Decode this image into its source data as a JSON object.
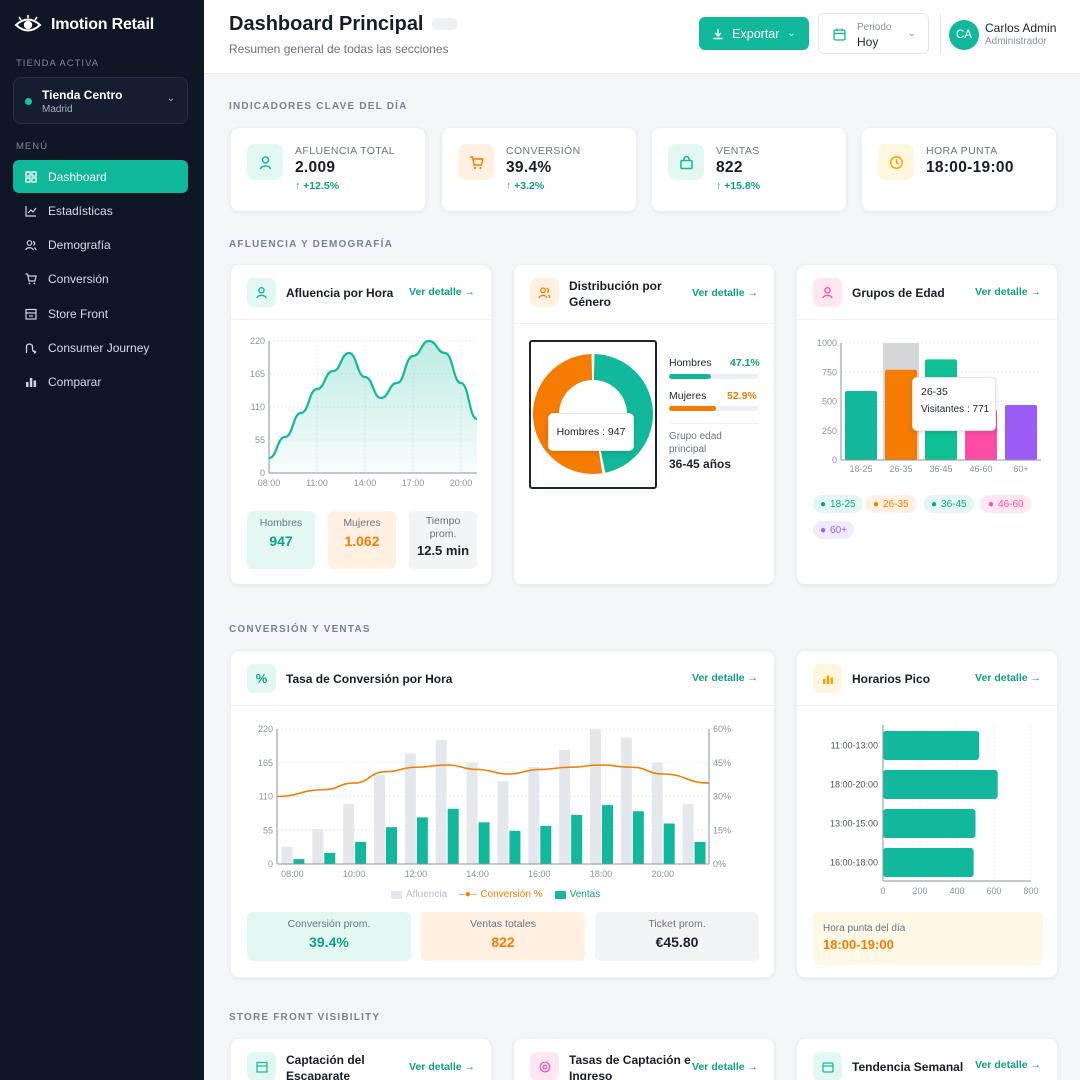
{
  "brand": {
    "name": "Imotion Retail",
    "logo_icon": "eye-icon"
  },
  "sidebar": {
    "store_label": "TIENDA ACTIVA",
    "store": {
      "name": "Tienda Centro",
      "city": "Madrid"
    },
    "menu_label": "MENÚ",
    "items": [
      {
        "label": "Dashboard",
        "icon": "grid-icon",
        "active": true
      },
      {
        "label": "Estadísticas",
        "icon": "line-chart-icon"
      },
      {
        "label": "Demografía",
        "icon": "users-icon"
      },
      {
        "label": "Conversión",
        "icon": "cart-icon"
      },
      {
        "label": "Store Front",
        "icon": "storefront-icon"
      },
      {
        "label": "Consumer Journey",
        "icon": "route-icon"
      },
      {
        "label": "Comparar",
        "icon": "bar-chart-icon"
      }
    ]
  },
  "header": {
    "title": "Dashboard Principal",
    "subtitle": "Resumen general de todas las secciones",
    "export_label": "Exportar",
    "period_label": "Periodo",
    "period_value": "Hoy",
    "user_initials": "CA",
    "user_name": "Carlos Admin",
    "user_role": "Administrador"
  },
  "colors": {
    "accent": "#12b89b",
    "orange": "#f57c00",
    "pink": "#ff4da6",
    "purple": "#9b5cf6",
    "sidebar": "#0f1626"
  },
  "sections": {
    "kpi": "INDICADORES CLAVE DEL DÍA",
    "demo": "AFLUENCIA Y DEMOGRAFÍA",
    "conv": "CONVERSIÓN Y VENTAS",
    "store": "STORE FRONT VISIBILITY"
  },
  "kpis": [
    {
      "label": "AFLUENCIA TOTAL",
      "value": "2.009",
      "delta": "↑ +12.5%",
      "icon": "person-icon"
    },
    {
      "label": "CONVERSIÓN",
      "value": "39.4%",
      "delta": "↑ +3.2%",
      "icon": "cart-icon"
    },
    {
      "label": "VENTAS",
      "value": "822",
      "delta": "↑ +15.8%",
      "icon": "bag-icon"
    },
    {
      "label": "HORA PUNTA",
      "value": "18:00-19:00",
      "delta": "",
      "icon": "clock-icon"
    }
  ],
  "link_label": "Ver detalle →",
  "cards": {
    "afluencia": {
      "title": "Afluencia por Hora",
      "stats": [
        {
          "label": "Hombres",
          "value": "947"
        },
        {
          "label": "Mujeres",
          "value": "1.062"
        },
        {
          "label": "Tiempo prom.",
          "value": "12.5 min"
        }
      ]
    },
    "genero": {
      "title": "Distribución por Género",
      "rows": [
        {
          "label": "Hombres",
          "pct": "47.1%",
          "value": 47.1
        },
        {
          "label": "Mujeres",
          "pct": "52.9%",
          "value": 52.9
        }
      ],
      "tooltip": "Hombres : 947",
      "group_label": "Grupo edad principal",
      "group_value": "36-45 años"
    },
    "edad": {
      "title": "Grupos de Edad",
      "tooltip_title": "26-35",
      "tooltip_value": "Visitantes : 771",
      "legend": [
        "18-25",
        "26-35",
        "36-45",
        "46-60",
        "60+"
      ]
    },
    "conversion": {
      "title": "Tasa de Conversión por Hora",
      "legend": [
        "Afluencia",
        "Conversión %",
        "Ventas"
      ],
      "stats": [
        {
          "label": "Conversión prom.",
          "value": "39.4%"
        },
        {
          "label": "Ventas totales",
          "value": "822"
        },
        {
          "label": "Ticket prom.",
          "value": "€45.80"
        }
      ]
    },
    "horarios": {
      "title": "Horarios Pico",
      "peak_label": "Hora punta del día",
      "peak_value": "18:00-19:00"
    },
    "store_cards": [
      {
        "title": "Captación del Escaparate",
        "icon": "storefront-icon"
      },
      {
        "title": "Tasas de Captación e Ingreso",
        "icon": "target-icon"
      },
      {
        "title": "Tendencia Semanal",
        "icon": "calendar-icon"
      }
    ]
  },
  "chart_data": [
    {
      "type": "area",
      "x": [
        8,
        9,
        10,
        11,
        12,
        13,
        14,
        15,
        16,
        17,
        18,
        19,
        20,
        21
      ],
      "x_ticks": [
        "08:00",
        "11:00",
        "14:00",
        "17:00",
        "20:00"
      ],
      "values": [
        25,
        60,
        100,
        140,
        170,
        200,
        160,
        125,
        150,
        195,
        220,
        200,
        150,
        90
      ],
      "ylim": [
        0,
        220
      ],
      "y_ticks": [
        0,
        55,
        110,
        165,
        220
      ]
    },
    {
      "type": "pie",
      "categories": [
        "Hombres",
        "Mujeres"
      ],
      "values": [
        47.1,
        52.9
      ]
    },
    {
      "type": "bar",
      "categories": [
        "18-25",
        "26-35",
        "36-45",
        "46-60",
        "60+"
      ],
      "values": [
        590,
        771,
        860,
        430,
        470
      ],
      "ylim": [
        0,
        1000
      ],
      "y_ticks": [
        0,
        250,
        500,
        750,
        1000
      ]
    },
    {
      "type": "bar",
      "x": [
        "08:00",
        "09:00",
        "10:00",
        "11:00",
        "12:00",
        "13:00",
        "14:00",
        "15:00",
        "16:00",
        "17:00",
        "18:00",
        "19:00",
        "20:00",
        "21:00"
      ],
      "x_ticks": [
        "08:00",
        "10:00",
        "12:00",
        "14:00",
        "16:00",
        "18:00",
        "20:00"
      ],
      "series": [
        {
          "name": "Afluencia",
          "values": [
            28,
            57,
            98,
            145,
            180,
            202,
            165,
            135,
            158,
            186,
            220,
            206,
            165,
            98
          ]
        },
        {
          "name": "Ventas",
          "values": [
            8,
            18,
            36,
            60,
            76,
            90,
            68,
            54,
            62,
            80,
            96,
            86,
            66,
            36
          ]
        },
        {
          "name": "Conversión %",
          "values": [
            30,
            33,
            36,
            41,
            43,
            44,
            42,
            40,
            42,
            43,
            44,
            43,
            40,
            36
          ]
        }
      ],
      "ylim": [
        0,
        220
      ],
      "y_ticks": [
        0,
        55,
        110,
        165,
        220
      ],
      "y2lim": [
        0,
        60
      ],
      "y2_ticks": [
        "0%",
        "15%",
        "30%",
        "45%",
        "60%"
      ]
    },
    {
      "type": "bar",
      "orientation": "horizontal",
      "categories": [
        "11:00-13:00",
        "18:00-20:00",
        "13:00-15:00",
        "16:00-18:00"
      ],
      "values": [
        520,
        620,
        500,
        490
      ],
      "xlim": [
        0,
        800
      ],
      "x_ticks": [
        0,
        200,
        400,
        600,
        800
      ]
    }
  ]
}
